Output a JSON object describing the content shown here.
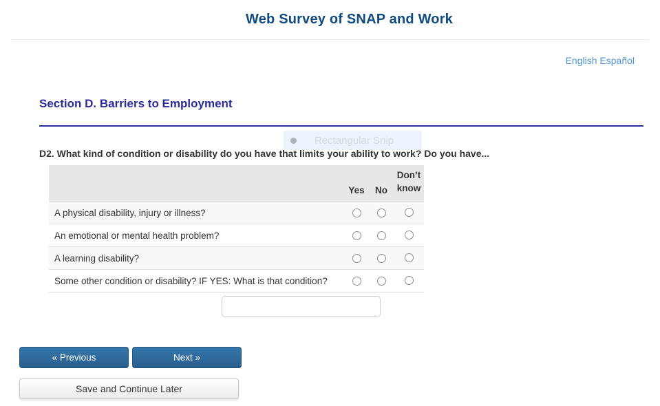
{
  "header": {
    "title": "Web Survey of SNAP and Work"
  },
  "language": {
    "english": "English",
    "espanol": "Español"
  },
  "section": {
    "title": "Section D. Barriers to Employment"
  },
  "snip_overlay": {
    "label": "Rectangular Snip"
  },
  "question": {
    "label": "D2. What kind of condition or disability do you have that limits your ability to work? Do you have..."
  },
  "table": {
    "columns": [
      "Yes",
      "No",
      "Don’t know"
    ],
    "rows": [
      {
        "label": "A physical disability, injury or illness?"
      },
      {
        "label": "An emotional or mental health problem?"
      },
      {
        "label": "A learning disability?"
      },
      {
        "label": "Some other condition or disability? IF YES: What is that condition?"
      }
    ]
  },
  "other_condition_input": {
    "value": ""
  },
  "buttons": {
    "previous": "« Previous",
    "next": "Next »",
    "save": "Save and Continue Later"
  },
  "colors": {
    "title_blue": "#114b7f",
    "section_purple": "#2b2b9c",
    "link_blue": "#4f94d4",
    "button_blue": "#2e6da4",
    "table_header_bg": "#e7e7e7",
    "table_stripe_bg": "#f8f8f8"
  }
}
